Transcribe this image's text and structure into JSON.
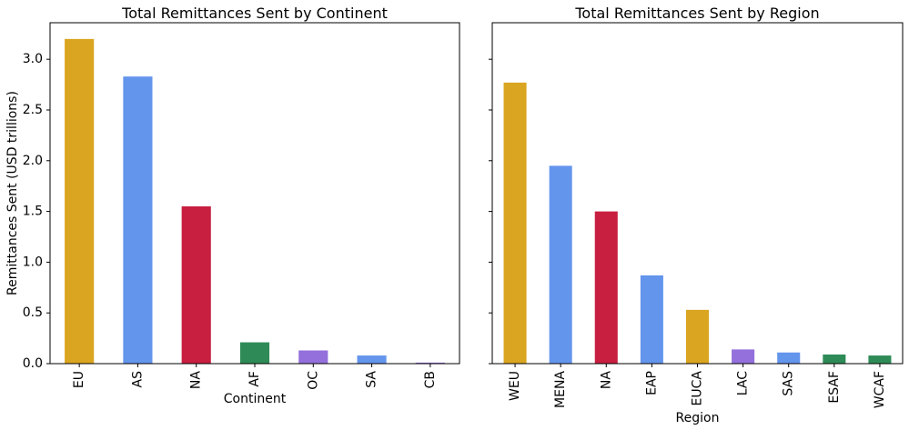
{
  "chart_data": [
    {
      "type": "bar",
      "title": "Total Remittances Sent by Continent",
      "xlabel": "Continent",
      "ylabel": "Remittances Sent (USD trillions)",
      "ylim": [
        0,
        3.36
      ],
      "yticks": [
        "0.0",
        "0.5",
        "1.0",
        "1.5",
        "2.0",
        "2.5",
        "3.0"
      ],
      "categories": [
        "EU",
        "AS",
        "NA",
        "AF",
        "OC",
        "SA",
        "CB"
      ],
      "values": [
        3.2,
        2.83,
        1.55,
        0.21,
        0.13,
        0.08,
        0.01
      ],
      "colors": [
        "#DAA520",
        "#6495ED",
        "#C81E3F",
        "#2E8B57",
        "#9370DB",
        "#6495ED",
        "#9370DB"
      ]
    },
    {
      "type": "bar",
      "title": "Total Remittances Sent by Region",
      "xlabel": "Region",
      "ylabel": "",
      "ylim": [
        0,
        3.36
      ],
      "yticks": [
        "0.0",
        "0.5",
        "1.0",
        "1.5",
        "2.0",
        "2.5",
        "3.0"
      ],
      "categories": [
        "WEU",
        "MENA",
        "NA",
        "EAP",
        "EUCA",
        "LAC",
        "SAS",
        "ESAF",
        "WCAF"
      ],
      "values": [
        2.77,
        1.95,
        1.5,
        0.87,
        0.53,
        0.14,
        0.11,
        0.09,
        0.08
      ],
      "colors": [
        "#DAA520",
        "#6495ED",
        "#C81E3F",
        "#6495ED",
        "#DAA520",
        "#9370DB",
        "#6495ED",
        "#2E8B57",
        "#2E8B57"
      ]
    }
  ]
}
